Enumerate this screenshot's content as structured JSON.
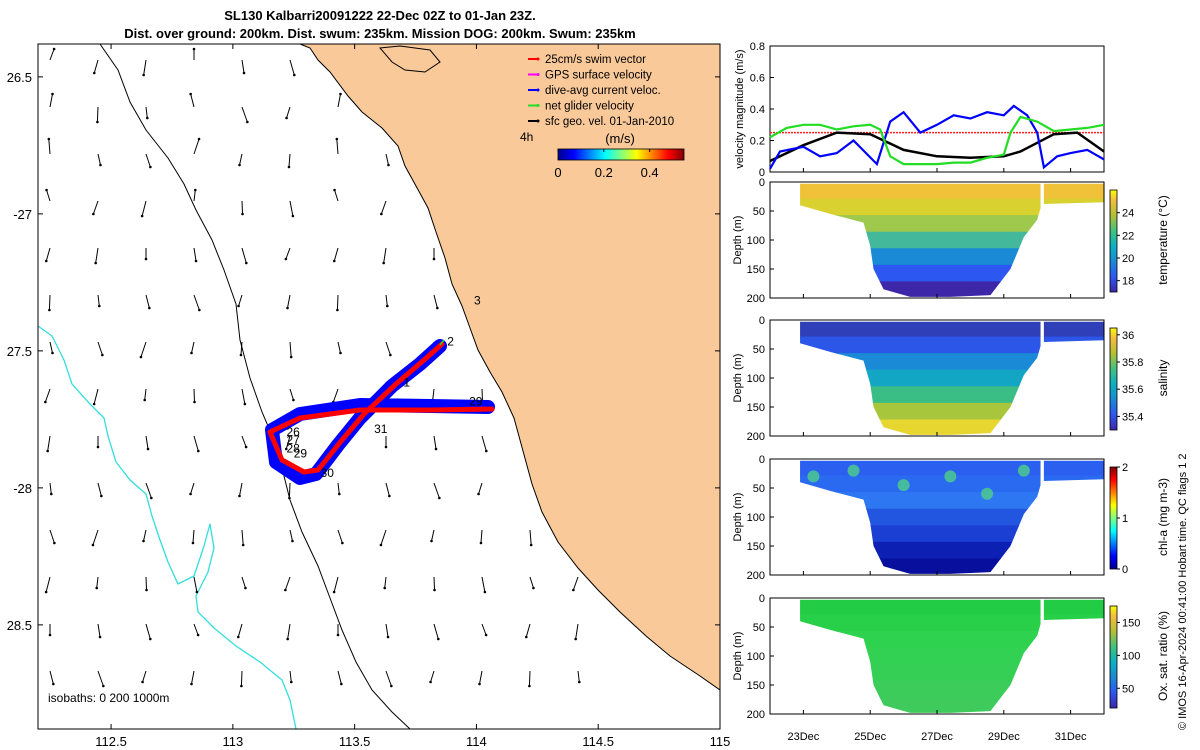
{
  "map": {
    "title_line1": "SL130 Kalbarri20091222 22-Dec 02Z to 01-Jan 23Z.",
    "title_line2": "Dist. over ground: 200km. Dist. swum: 235km. Mission DOG: 200km. Swum: 235km",
    "lon_ticks": [
      112.5,
      113,
      113.5,
      114,
      114.5,
      115
    ],
    "lon_tick_labels": [
      "112.5",
      "113",
      "113.5",
      "114",
      "114.5",
      "115"
    ],
    "lat_ticks": [
      -26.5,
      -27,
      -27.5,
      -28,
      -28.5
    ],
    "lat_tick_labels": [
      "26.5",
      "-27",
      "27.5",
      "-28",
      "28.5"
    ],
    "xlim": [
      112.2,
      115
    ],
    "ylim": [
      -28.88,
      -26.38
    ],
    "legend": [
      {
        "label": "25cm/s swim vector",
        "color": "#ff0000"
      },
      {
        "label": "GPS surface velocity",
        "color": "#ff00ff"
      },
      {
        "label": "dive-avg current veloc.",
        "color": "#0000ff"
      },
      {
        "label": "net glider velocity",
        "color": "#22dd22"
      },
      {
        "label": "sfc geo. vel. 01-Jan-2010",
        "color": "#000000"
      }
    ],
    "colorbar_units": "(m/s)",
    "colorbar_ticks": [
      "0",
      "0.2",
      "0.4"
    ],
    "age_label": "4h",
    "day_labels": [
      {
        "text": "1",
        "lon": 113.7,
        "lat": -27.63
      },
      {
        "text": "2",
        "lon": 113.88,
        "lat": -27.48
      },
      {
        "text": "3",
        "lon": 113.99,
        "lat": -27.33
      },
      {
        "text": "26",
        "lon": 113.22,
        "lat": -27.81
      },
      {
        "text": "27",
        "lon": 113.22,
        "lat": -27.84
      },
      {
        "text": "28",
        "lon": 113.22,
        "lat": -27.87
      },
      {
        "text": "29",
        "lon": 113.25,
        "lat": -27.89
      },
      {
        "text": "30",
        "lon": 113.36,
        "lat": -27.96
      },
      {
        "text": "31",
        "lon": 113.58,
        "lat": -27.8
      },
      {
        "text": "29",
        "lon": 113.97,
        "lat": -27.7
      }
    ],
    "isobaths_label": "isobaths: 0   200  1000m",
    "colors": {
      "land": "#f9c99a",
      "isobath200": "#33dddd",
      "track_swim": "#ff0000",
      "track_current": "#0000ff"
    }
  },
  "timeseries": {
    "ylabel": "velocity magnitude (m/s)",
    "y_ticks": [
      "0",
      "0.2",
      "0.4",
      "0.6",
      "0.8"
    ],
    "ylim": [
      0,
      0.8
    ],
    "t_range": [
      22.0,
      32.0
    ],
    "series": [
      {
        "name": "swim speed",
        "color": "#ff2222",
        "points": [
          [
            22.0,
            0.25
          ],
          [
            32.0,
            0.25
          ]
        ]
      },
      {
        "name": "surface geostrophic",
        "color": "#000000",
        "points": [
          [
            22.0,
            0.07
          ],
          [
            23.0,
            0.17
          ],
          [
            24.0,
            0.25
          ],
          [
            25.0,
            0.24
          ],
          [
            26.0,
            0.14
          ],
          [
            27.0,
            0.1
          ],
          [
            28.0,
            0.09
          ],
          [
            29.0,
            0.1
          ],
          [
            29.5,
            0.13
          ],
          [
            30.5,
            0.24
          ],
          [
            31.2,
            0.25
          ],
          [
            32.0,
            0.13
          ]
        ]
      },
      {
        "name": "dive-avg current",
        "color": "#0000ff",
        "points": [
          [
            22.0,
            0.02
          ],
          [
            22.3,
            0.13
          ],
          [
            23.0,
            0.16
          ],
          [
            23.5,
            0.1
          ],
          [
            24.0,
            0.12
          ],
          [
            24.5,
            0.2
          ],
          [
            25.2,
            0.05
          ],
          [
            25.6,
            0.32
          ],
          [
            26.0,
            0.38
          ],
          [
            26.5,
            0.25
          ],
          [
            27.0,
            0.3
          ],
          [
            27.5,
            0.36
          ],
          [
            28.0,
            0.34
          ],
          [
            28.5,
            0.38
          ],
          [
            29.0,
            0.36
          ],
          [
            29.3,
            0.42
          ],
          [
            29.7,
            0.36
          ],
          [
            30.0,
            0.25
          ],
          [
            30.2,
            0.03
          ],
          [
            30.6,
            0.1
          ],
          [
            31.0,
            0.12
          ],
          [
            31.5,
            0.14
          ],
          [
            32.0,
            0.08
          ]
        ]
      },
      {
        "name": "net glider",
        "color": "#22dd22",
        "points": [
          [
            22.0,
            0.22
          ],
          [
            22.5,
            0.28
          ],
          [
            23.0,
            0.3
          ],
          [
            23.5,
            0.3
          ],
          [
            24.0,
            0.27
          ],
          [
            24.5,
            0.29
          ],
          [
            25.0,
            0.3
          ],
          [
            25.3,
            0.27
          ],
          [
            25.6,
            0.1
          ],
          [
            26.0,
            0.05
          ],
          [
            27.0,
            0.05
          ],
          [
            27.5,
            0.06
          ],
          [
            28.0,
            0.06
          ],
          [
            28.5,
            0.09
          ],
          [
            29.0,
            0.11
          ],
          [
            29.2,
            0.25
          ],
          [
            29.5,
            0.35
          ],
          [
            30.0,
            0.32
          ],
          [
            30.5,
            0.26
          ],
          [
            31.0,
            0.27
          ],
          [
            31.5,
            0.28
          ],
          [
            32.0,
            0.3
          ]
        ]
      }
    ]
  },
  "sections": [
    {
      "name": "temperature",
      "clabel": "temperature (°C)",
      "cticks": [
        "18",
        "20",
        "22",
        "24"
      ],
      "cmin": 17,
      "cmax": 26
    },
    {
      "name": "salinity",
      "clabel": "salinity",
      "cticks": [
        "35.4",
        "35.6",
        "35.8",
        "36"
      ],
      "cmin": 35.3,
      "cmax": 36.05
    },
    {
      "name": "chl-a",
      "clabel": "chl-a (mg m-3)",
      "cticks": [
        "0",
        "1",
        "2"
      ],
      "cmin": 0,
      "cmax": 2
    },
    {
      "name": "oxygen",
      "clabel": "Ox. sat. ratio (%)",
      "cticks": [
        "50",
        "100",
        "150"
      ],
      "cmin": 20,
      "cmax": 175
    }
  ],
  "section_common": {
    "ylabel": "Depth (m)",
    "depth_ticks": [
      "0",
      "50",
      "100",
      "150",
      "200"
    ],
    "depth_range": [
      0,
      200
    ],
    "time_ticks": [
      "23Dec",
      "25Dec",
      "27Dec",
      "29Dec",
      "31Dec"
    ],
    "time_values": [
      23,
      25,
      27,
      29,
      31
    ]
  },
  "side_note": "© IMOS 16-Apr-2024 00:41:00 Hobart time. QC flags 1  2"
}
